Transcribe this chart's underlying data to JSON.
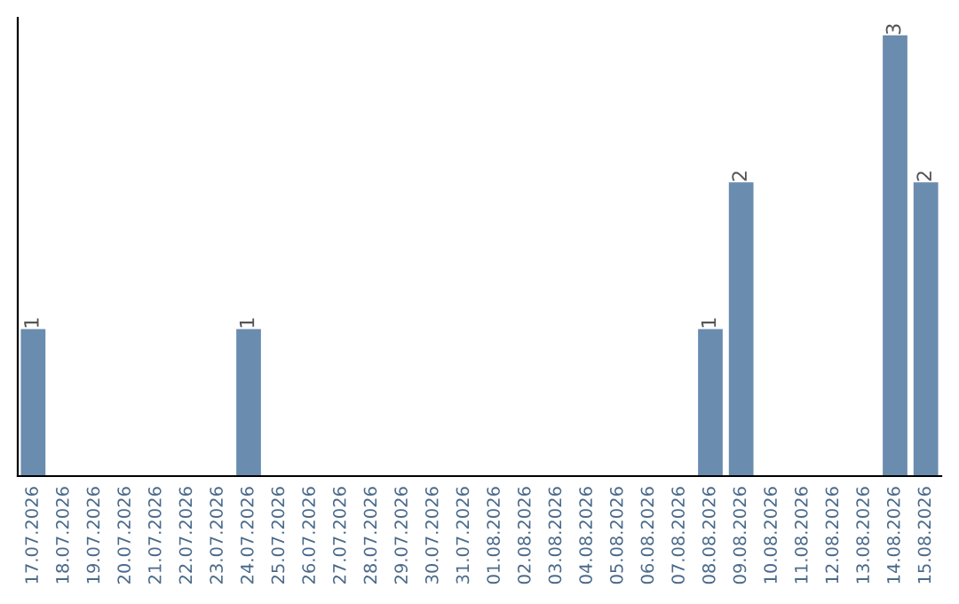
{
  "chart_data": {
    "type": "bar",
    "categories": [
      "17.07.2026",
      "18.07.2026",
      "19.07.2026",
      "20.07.2026",
      "21.07.2026",
      "22.07.2026",
      "23.07.2026",
      "24.07.2026",
      "25.07.2026",
      "26.07.2026",
      "27.07.2026",
      "28.07.2026",
      "29.07.2026",
      "30.07.2026",
      "31.07.2026",
      "01.08.2026",
      "02.08.2026",
      "03.08.2026",
      "04.08.2026",
      "05.08.2026",
      "06.08.2026",
      "07.08.2026",
      "08.08.2026",
      "09.08.2026",
      "10.08.2026",
      "11.08.2026",
      "12.08.2026",
      "13.08.2026",
      "14.08.2026",
      "15.08.2026"
    ],
    "values": [
      1,
      0,
      0,
      0,
      0,
      0,
      0,
      1,
      0,
      0,
      0,
      0,
      0,
      0,
      0,
      0,
      0,
      0,
      0,
      0,
      0,
      0,
      1,
      2,
      0,
      0,
      0,
      0,
      3,
      2
    ],
    "value_labels": [
      "1",
      null,
      null,
      null,
      null,
      null,
      null,
      "1",
      null,
      null,
      null,
      null,
      null,
      null,
      null,
      null,
      null,
      null,
      null,
      null,
      null,
      null,
      "1",
      "2",
      null,
      null,
      null,
      null,
      "3",
      "2"
    ],
    "color": "#6a8caf",
    "grid": false,
    "legend": false
  }
}
